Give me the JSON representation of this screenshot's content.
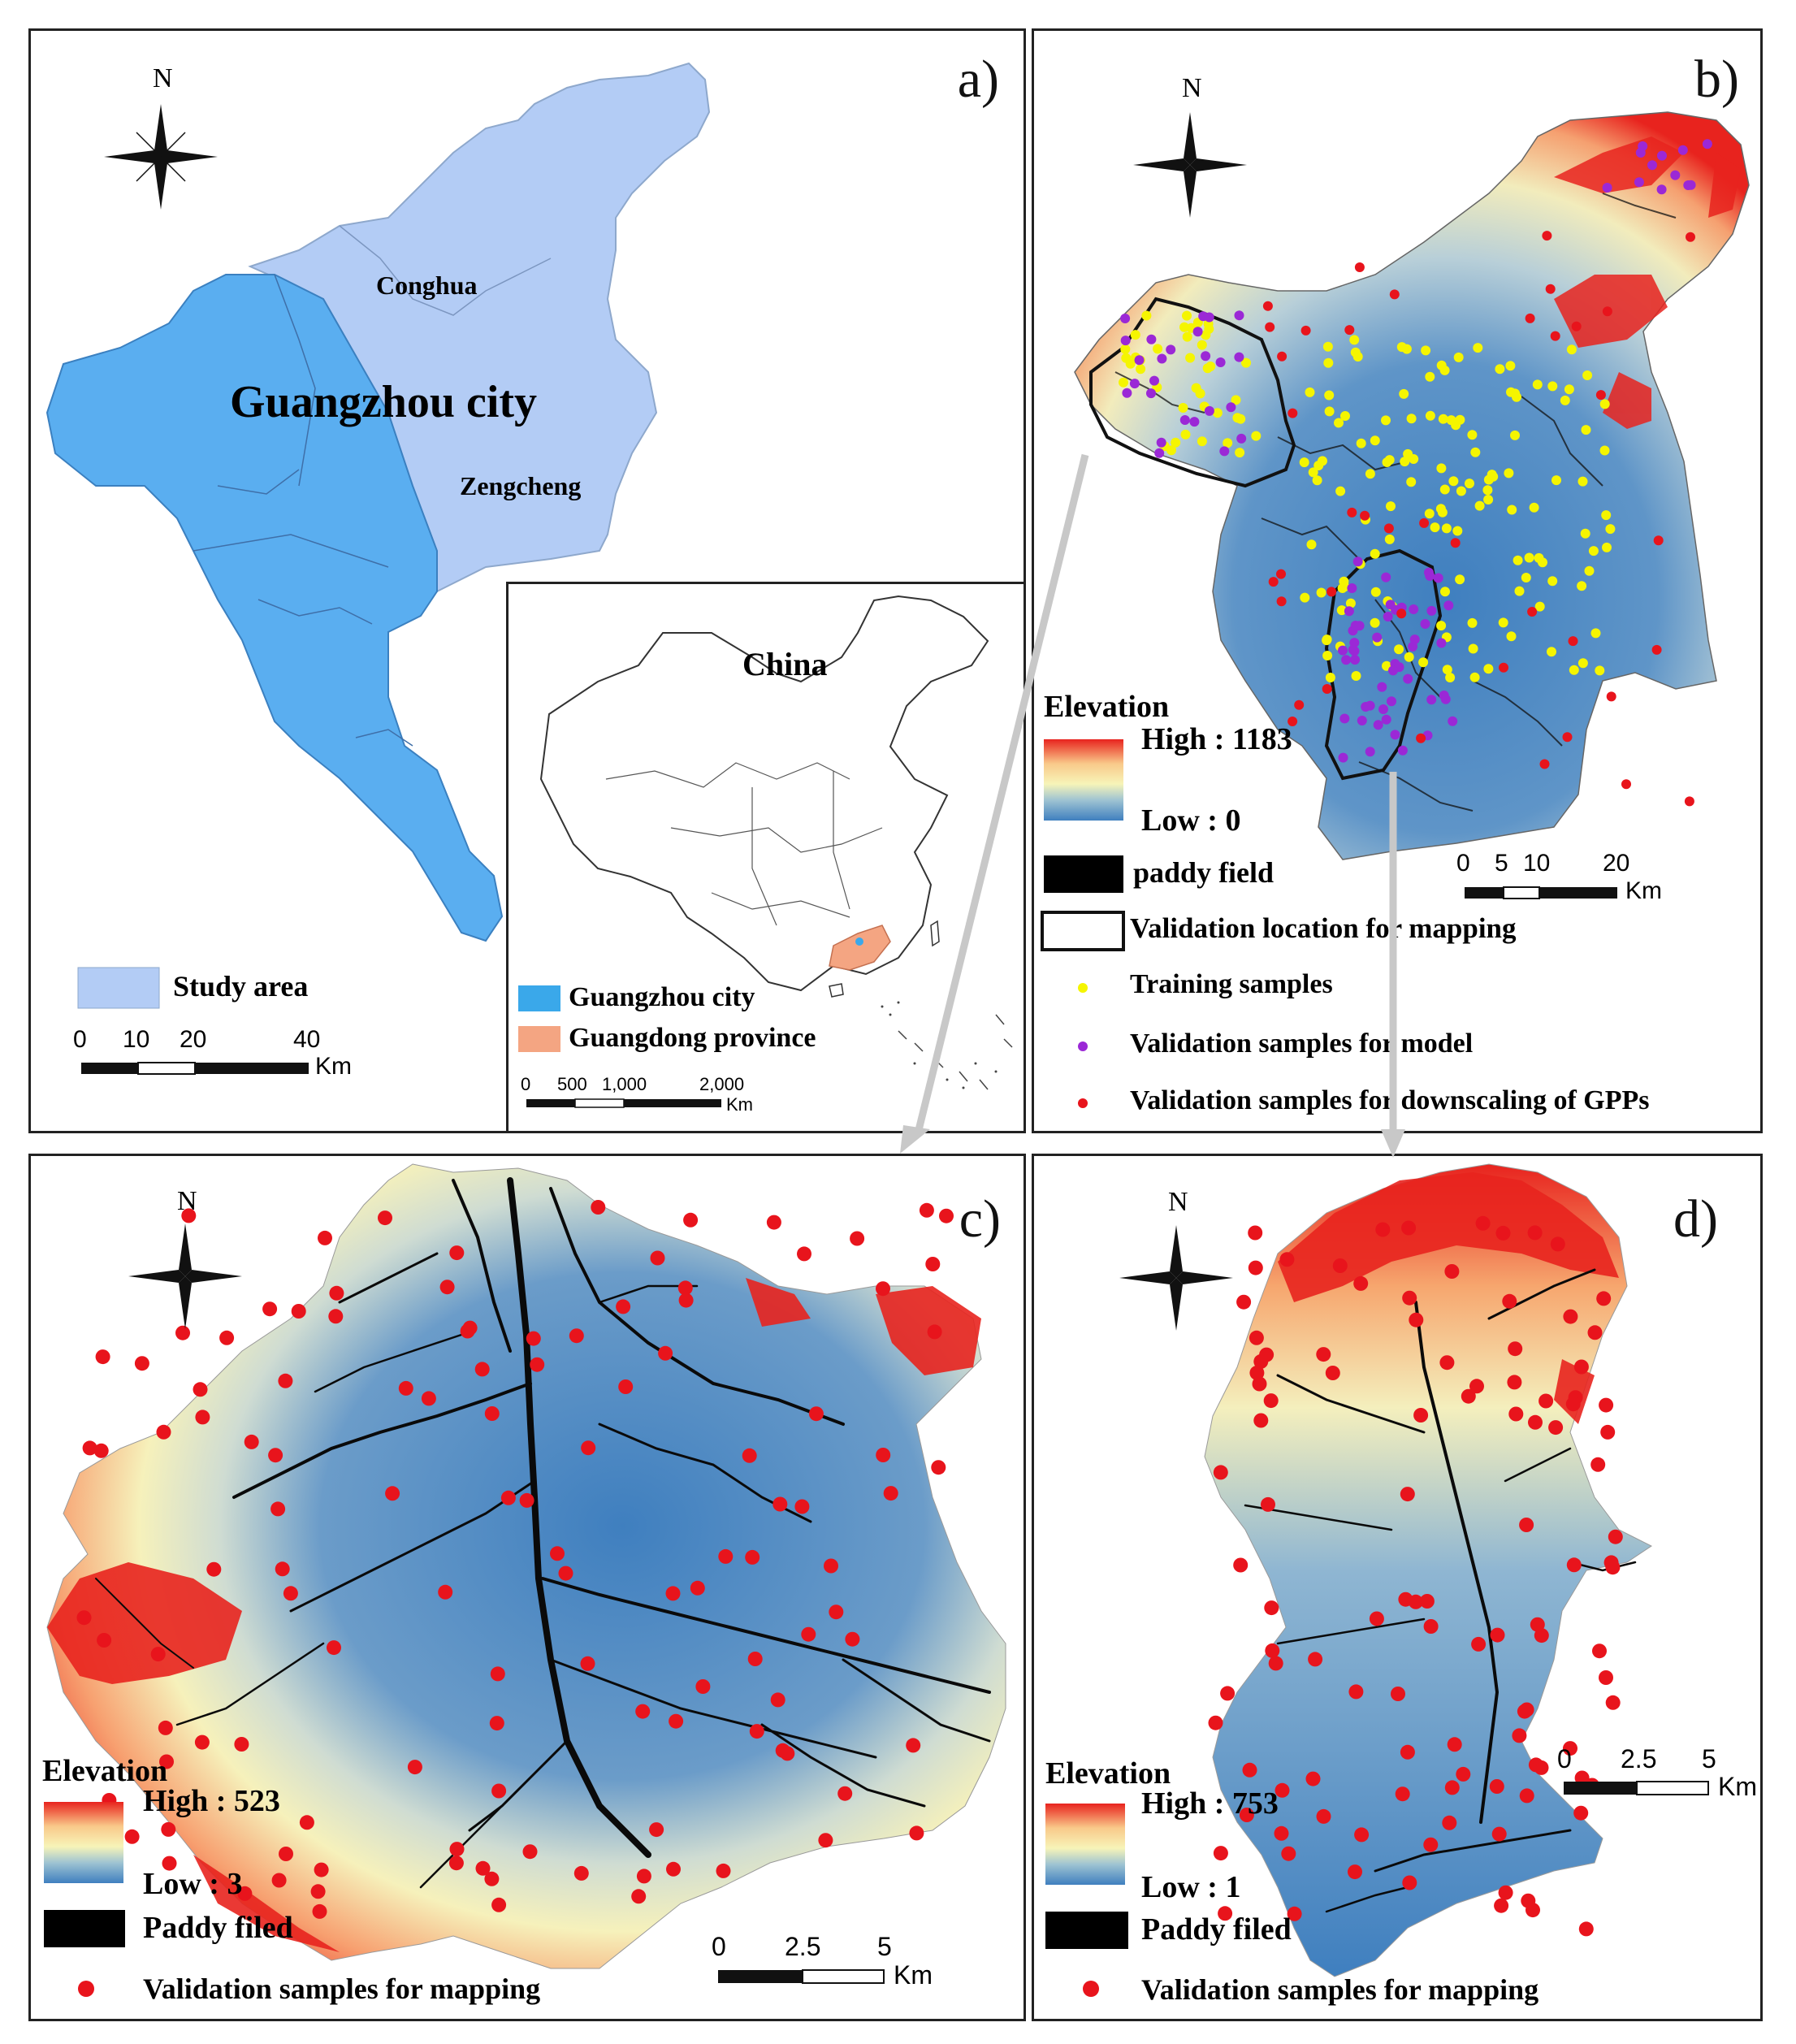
{
  "panels": {
    "a": {
      "label": "a)",
      "north": "N",
      "city_name": "Guangzhou city",
      "district_conghua": "Conghua",
      "district_zengcheng": "Zengcheng",
      "legend_study_area": "Study area",
      "scale_ticks": [
        "0",
        "10",
        "20",
        "40"
      ],
      "scale_unit": "Km",
      "colors": {
        "study_area": "#b3ccf5",
        "guangzhou": "#5aaef0"
      },
      "inset": {
        "title": "China",
        "legend_guangzhou": "Guangzhou city",
        "legend_guangdong": "Guangdong province",
        "scale_ticks": [
          "0",
          "500",
          "1,000",
          "2,000"
        ],
        "scale_unit": "Km",
        "colors": {
          "guangzhou": "#3aa8ea",
          "guangdong": "#f4a582"
        }
      }
    },
    "b": {
      "label": "b)",
      "north": "N",
      "legend_title": "Elevation",
      "legend_high": "High : 1183",
      "legend_low": "Low : 0",
      "legend_paddy": "paddy field",
      "legend_validation_location": "Validation location for mapping",
      "legend_training": "Training samples",
      "legend_validation_model": "Validation samples for model",
      "legend_validation_gpp": "Validation samples for downscaling of GPPs",
      "scale_ticks": [
        "0",
        "5",
        "10",
        "20"
      ],
      "scale_unit": "Km",
      "colors": {
        "training": "#f5f500",
        "validation_model": "#9b28d6",
        "validation_gpp": "#e8141c"
      }
    },
    "c": {
      "label": "c)",
      "north": "N",
      "legend_title": "Elevation",
      "legend_high": "High : 523",
      "legend_low": "Low : 3",
      "legend_paddy": "Paddy filed",
      "legend_samples": "Validation samples for mapping",
      "scale_ticks": [
        "0",
        "2.5",
        "5"
      ],
      "scale_unit": "Km"
    },
    "d": {
      "label": "d)",
      "north": "N",
      "legend_title": "Elevation",
      "legend_high": "High : 753",
      "legend_low": "Low : 1",
      "legend_paddy": "Paddy filed",
      "legend_samples": "Validation samples for mapping",
      "scale_ticks": [
        "0",
        "2.5",
        "5"
      ],
      "scale_unit": "Km"
    }
  },
  "elevation_colors": [
    "#e8231e",
    "#f7f4b8",
    "#3f7fbf"
  ]
}
